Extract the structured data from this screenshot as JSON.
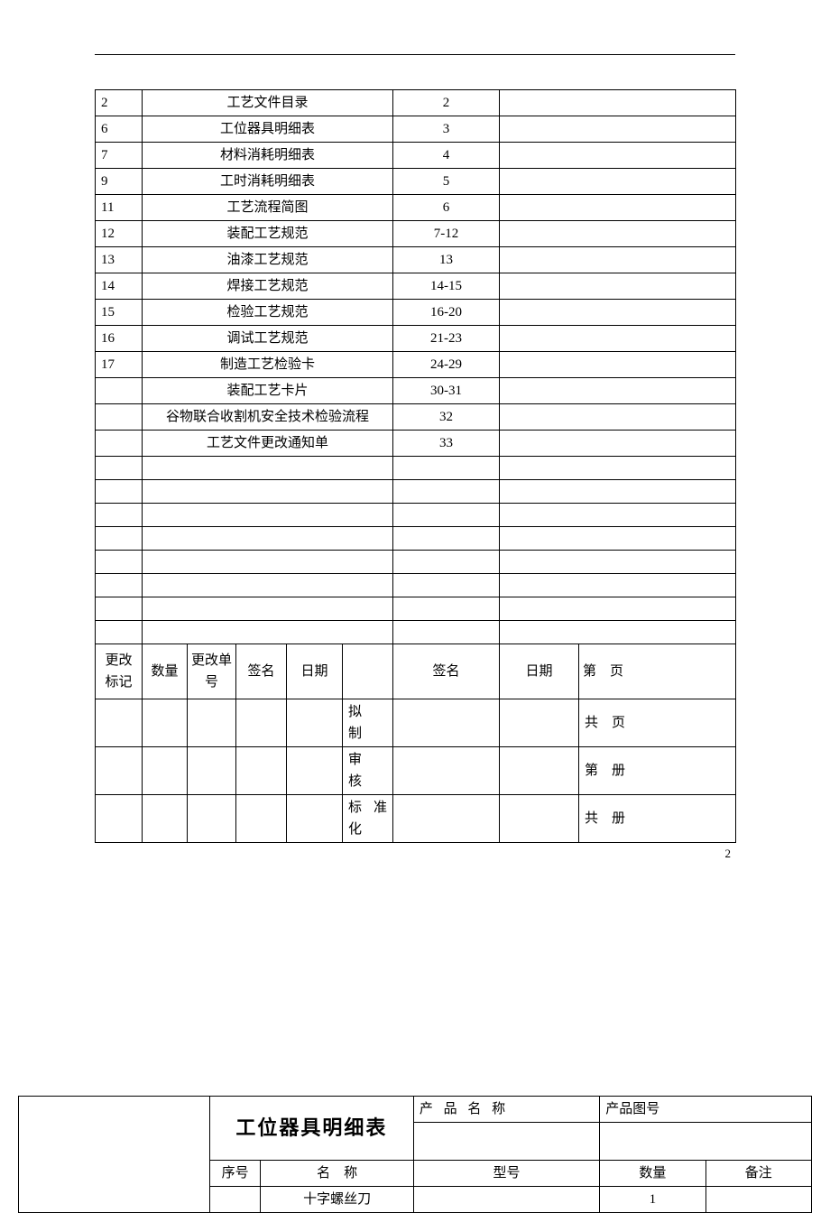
{
  "toc": {
    "rows": [
      {
        "no": "2",
        "name": "工艺文件目录",
        "page": "2"
      },
      {
        "no": "6",
        "name": "工位器具明细表",
        "page": "3"
      },
      {
        "no": "7",
        "name": "材料消耗明细表",
        "page": "4"
      },
      {
        "no": "9",
        "name": "工时消耗明细表",
        "page": "5"
      },
      {
        "no": "11",
        "name": "工艺流程简图",
        "page": "6"
      },
      {
        "no": "12",
        "name": "装配工艺规范",
        "page": "7-12"
      },
      {
        "no": "13",
        "name": "油漆工艺规范",
        "page": "13"
      },
      {
        "no": "14",
        "name": "焊接工艺规范",
        "page": "14-15"
      },
      {
        "no": "15",
        "name": "检验工艺规范",
        "page": "16-20"
      },
      {
        "no": "16",
        "name": "调试工艺规范",
        "page": "21-23"
      },
      {
        "no": "17",
        "name": "制造工艺检验卡",
        "page": "24-29"
      },
      {
        "no": "",
        "name": "装配工艺卡片",
        "page": "30-31"
      },
      {
        "no": "",
        "name": "谷物联合收割机安全技术检验流程",
        "page": "32"
      },
      {
        "no": "",
        "name": "工艺文件更改通知单",
        "page": "33"
      }
    ],
    "blank_rows": 8
  },
  "footer": {
    "headers": {
      "change_mark": "更改标记",
      "qty": "数量",
      "change_no": "更改单号",
      "sign": "签名",
      "date": "日期",
      "sign2": "签名",
      "date2": "日期",
      "page_of_a": "第　页"
    },
    "rows": [
      {
        "stage": "拟　制",
        "right": "共　页"
      },
      {
        "stage": "审　核",
        "right": "第　册"
      },
      {
        "stage": "标 准 化",
        "right": "共　册"
      }
    ]
  },
  "page_number": "2",
  "detail_table": {
    "title": "工位器具明细表",
    "labels": {
      "product_name": "产 品 名 称",
      "product_drawing": "产品图号",
      "seq": "序号",
      "name": "名　称",
      "model": "型号",
      "qty": "数量",
      "remark": "备注"
    },
    "rows": [
      {
        "seq": "",
        "name": "十字螺丝刀",
        "model": "",
        "qty": "1",
        "remark": ""
      }
    ]
  },
  "style": {
    "border_color": "#000000",
    "font_body_pt": 15,
    "font_title_pt": 22
  }
}
